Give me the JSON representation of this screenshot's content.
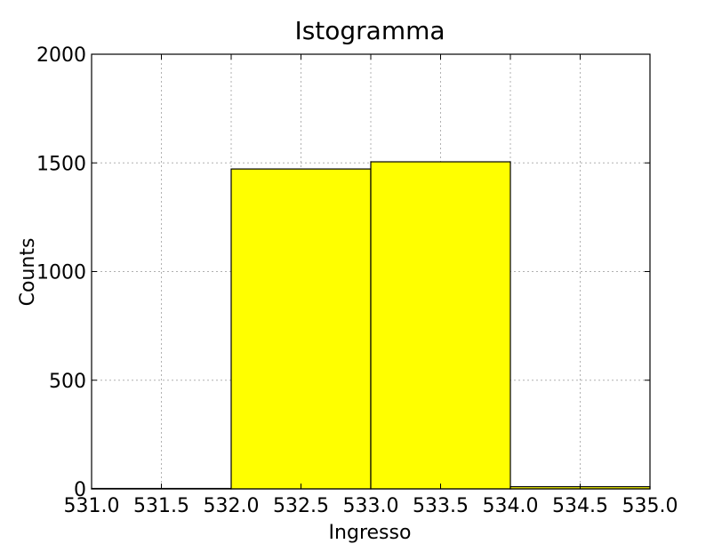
{
  "chart_data": {
    "type": "bar",
    "title": "Istogramma",
    "xlabel": "Ingresso",
    "ylabel": "Counts",
    "xlim": [
      531.0,
      535.0
    ],
    "ylim": [
      0,
      2000
    ],
    "xticks": [
      "531.0",
      "531.5",
      "532.0",
      "532.5",
      "533.0",
      "533.5",
      "534.0",
      "534.5",
      "535.0"
    ],
    "yticks": [
      "0",
      "500",
      "1000",
      "1500",
      "2000"
    ],
    "bins": [
      {
        "x0": 531.0,
        "x1": 532.0,
        "value": 2
      },
      {
        "x0": 532.0,
        "x1": 533.0,
        "value": 1472
      },
      {
        "x0": 533.0,
        "x1": 534.0,
        "value": 1505
      },
      {
        "x0": 534.0,
        "x1": 535.0,
        "value": 10
      }
    ],
    "bar_color": "#ffff00",
    "grid": true
  }
}
